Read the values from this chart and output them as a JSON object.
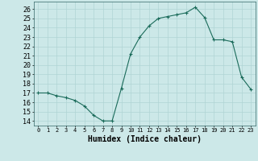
{
  "x": [
    0,
    1,
    2,
    3,
    4,
    5,
    6,
    7,
    8,
    9,
    10,
    11,
    12,
    13,
    14,
    15,
    16,
    17,
    18,
    19,
    20,
    21,
    22,
    23
  ],
  "y": [
    17.0,
    17.0,
    16.7,
    16.5,
    16.2,
    15.6,
    14.6,
    14.0,
    14.0,
    17.5,
    21.2,
    23.0,
    24.2,
    25.0,
    25.2,
    25.4,
    25.6,
    26.2,
    25.1,
    22.7,
    22.7,
    22.5,
    18.7,
    17.4
  ],
  "line_color": "#1a6b5a",
  "marker": "+",
  "marker_size": 3,
  "bg_color": "#cce8e8",
  "grid_color": "#b0d4d4",
  "xlabel": "Humidex (Indice chaleur)",
  "ylim": [
    13.5,
    26.8
  ],
  "xlim": [
    -0.5,
    23.5
  ],
  "yticks": [
    14,
    15,
    16,
    17,
    18,
    19,
    20,
    21,
    22,
    23,
    24,
    25,
    26
  ],
  "xticks": [
    0,
    1,
    2,
    3,
    4,
    5,
    6,
    7,
    8,
    9,
    10,
    11,
    12,
    13,
    14,
    15,
    16,
    17,
    18,
    19,
    20,
    21,
    22,
    23
  ],
  "xtick_labels": [
    "0",
    "1",
    "2",
    "3",
    "4",
    "5",
    "6",
    "7",
    "8",
    "9",
    "10",
    "11",
    "12",
    "13",
    "14",
    "15",
    "16",
    "17",
    "18",
    "19",
    "20",
    "21",
    "22",
    "23"
  ],
  "ytick_fontsize": 6,
  "xtick_fontsize": 5,
  "xlabel_fontsize": 7
}
